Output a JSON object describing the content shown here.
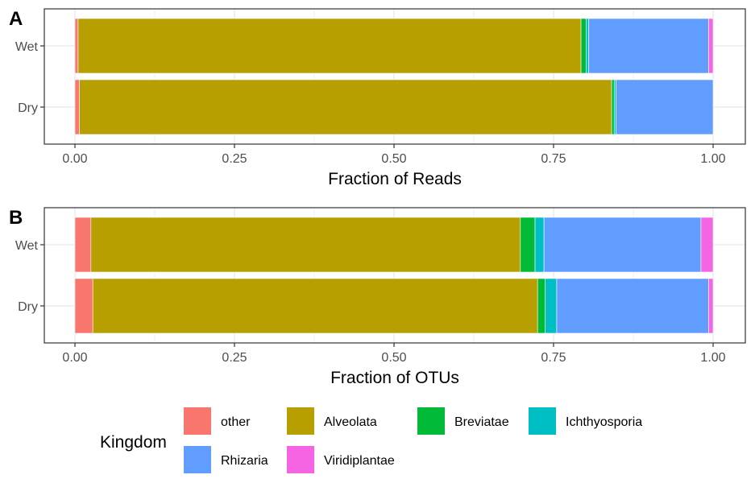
{
  "colors": {
    "other": "#F8766D",
    "Alveolata": "#B79F00",
    "Breviatae": "#00BA38",
    "Ichthyosporia": "#00BFC4",
    "Rhizaria": "#619CFF",
    "Viridiplantae": "#F564E3",
    "panel_border": "#333333",
    "grid": "#ebebeb",
    "tick_text": "#4d4d4d"
  },
  "chart_data": [
    {
      "type": "bar",
      "orientation": "horizontal",
      "stacked": true,
      "panel_label": "A",
      "xlabel": "Fraction of Reads",
      "ylabel": "",
      "categories": [
        "Wet",
        "Dry"
      ],
      "xlim": [
        0,
        1
      ],
      "x_ticks": [
        "0.00",
        "0.25",
        "0.50",
        "0.75",
        "1.00"
      ],
      "grid": true,
      "series": [
        {
          "name": "other",
          "values": [
            0.005,
            0.007
          ]
        },
        {
          "name": "Alveolata",
          "values": [
            0.788,
            0.834
          ]
        },
        {
          "name": "Breviatae",
          "values": [
            0.008,
            0.004
          ]
        },
        {
          "name": "Ichthyosporia",
          "values": [
            0.004,
            0.003
          ]
        },
        {
          "name": "Rhizaria",
          "values": [
            0.188,
            0.152
          ]
        },
        {
          "name": "Viridiplantae",
          "values": [
            0.007,
            0.0
          ]
        }
      ]
    },
    {
      "type": "bar",
      "orientation": "horizontal",
      "stacked": true,
      "panel_label": "B",
      "xlabel": "Fraction of OTUs",
      "ylabel": "",
      "categories": [
        "Wet",
        "Dry"
      ],
      "xlim": [
        0,
        1
      ],
      "x_ticks": [
        "0.00",
        "0.25",
        "0.50",
        "0.75",
        "1.00"
      ],
      "grid": true,
      "series": [
        {
          "name": "other",
          "values": [
            0.025,
            0.028
          ]
        },
        {
          "name": "Alveolata",
          "values": [
            0.673,
            0.697
          ]
        },
        {
          "name": "Breviatae",
          "values": [
            0.023,
            0.012
          ]
        },
        {
          "name": "Ichthyosporia",
          "values": [
            0.014,
            0.018
          ]
        },
        {
          "name": "Rhizaria",
          "values": [
            0.246,
            0.238
          ]
        },
        {
          "name": "Viridiplantae",
          "values": [
            0.019,
            0.007
          ]
        }
      ]
    }
  ],
  "legend": {
    "title": "Kingdom",
    "position": "bottom",
    "items": [
      "other",
      "Alveolata",
      "Breviatae",
      "Ichthyosporia",
      "Rhizaria",
      "Viridiplantae"
    ]
  }
}
